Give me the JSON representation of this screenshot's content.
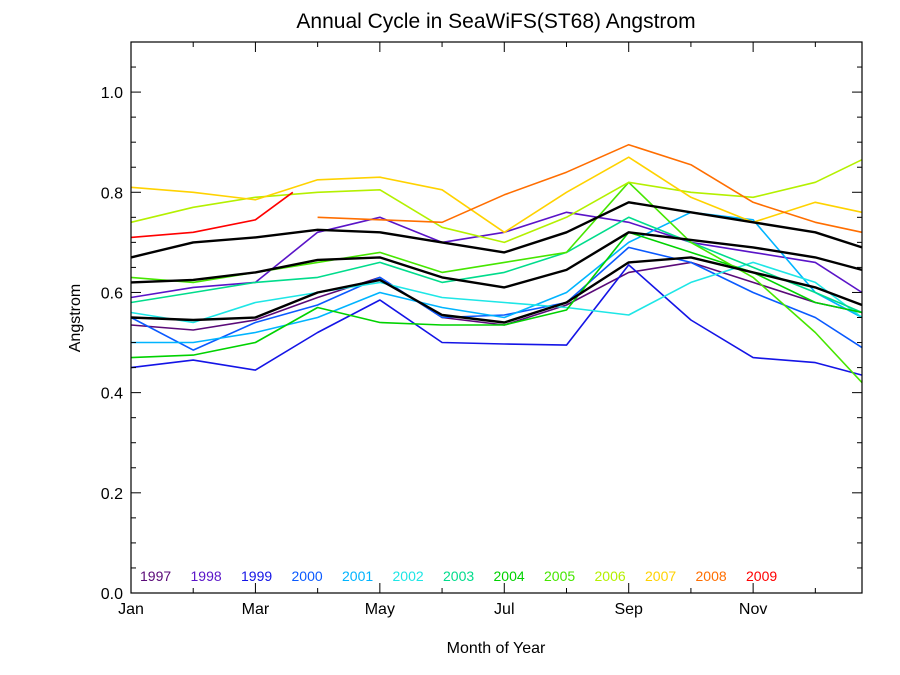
{
  "chart_data": {
    "type": "line",
    "title": "Annual Cycle in SeaWiFS(ST68) Angstrom",
    "xlabel": "Month of Year",
    "ylabel": "Angstrom",
    "xlim": [
      1,
      12.75
    ],
    "ylim": [
      0.0,
      1.1
    ],
    "x_ticks": [
      {
        "value": 1,
        "label": "Jan"
      },
      {
        "value": 3,
        "label": "Mar"
      },
      {
        "value": 5,
        "label": "May"
      },
      {
        "value": 7,
        "label": "Jul"
      },
      {
        "value": 9,
        "label": "Sep"
      },
      {
        "value": 11,
        "label": "Nov"
      }
    ],
    "y_ticks": [
      {
        "value": 0.0,
        "label": "0.0"
      },
      {
        "value": 0.2,
        "label": "0.2"
      },
      {
        "value": 0.4,
        "label": "0.4"
      },
      {
        "value": 0.6,
        "label": "0.6"
      },
      {
        "value": 0.8,
        "label": "0.8"
      },
      {
        "value": 1.0,
        "label": "1.0"
      }
    ],
    "grid": false,
    "legend_position": "bottom, inside plot",
    "legend": [
      {
        "label": "1997",
        "color": "#5a0a78"
      },
      {
        "label": "1998",
        "color": "#5a14c8"
      },
      {
        "label": "1999",
        "color": "#1414e6"
      },
      {
        "label": "2000",
        "color": "#0a5aff"
      },
      {
        "label": "2001",
        "color": "#00b4ff"
      },
      {
        "label": "2002",
        "color": "#1ee6e6"
      },
      {
        "label": "2003",
        "color": "#00dc8c"
      },
      {
        "label": "2004",
        "color": "#00d200"
      },
      {
        "label": "2005",
        "color": "#46e600"
      },
      {
        "label": "2006",
        "color": "#b4f000"
      },
      {
        "label": "2007",
        "color": "#ffd200"
      },
      {
        "label": "2008",
        "color": "#ff6e00"
      },
      {
        "label": "2009",
        "color": "#ff0000"
      }
    ],
    "series": [
      {
        "color": "#5a0a78",
        "x": [
          1,
          2,
          3,
          4,
          5,
          6,
          7,
          8,
          9,
          10,
          11,
          12,
          12.75
        ],
        "y": [
          0.535,
          0.525,
          0.545,
          0.59,
          0.63,
          0.55,
          0.535,
          0.575,
          0.64,
          0.66,
          0.62,
          0.58,
          0.56
        ]
      },
      {
        "color": "#5a14c8",
        "x": [
          1,
          2,
          3,
          4,
          5,
          6,
          7,
          8,
          9,
          10,
          11,
          12,
          12.75
        ],
        "y": [
          0.59,
          0.61,
          0.62,
          0.72,
          0.75,
          0.7,
          0.72,
          0.76,
          0.74,
          0.7,
          0.68,
          0.66,
          0.6
        ]
      },
      {
        "color": "#1414e6",
        "x": [
          1,
          2,
          3,
          4,
          5,
          6,
          7,
          8,
          9,
          10,
          11,
          12,
          12.75
        ],
        "y": [
          0.45,
          0.465,
          0.445,
          0.52,
          0.585,
          0.5,
          0.497,
          0.495,
          0.655,
          0.545,
          0.47,
          0.46,
          0.435
        ]
      },
      {
        "color": "#0a5aff",
        "x": [
          1,
          2,
          3,
          4,
          5,
          6,
          7,
          8,
          9,
          10,
          11,
          12,
          12.75
        ],
        "y": [
          0.55,
          0.485,
          0.54,
          0.575,
          0.63,
          0.55,
          0.555,
          0.58,
          0.69,
          0.66,
          0.6,
          0.55,
          0.49
        ]
      },
      {
        "color": "#00b4ff",
        "x": [
          1,
          2,
          3,
          4,
          5,
          6,
          7,
          8,
          9,
          10,
          11,
          12,
          12.75
        ],
        "y": [
          0.5,
          0.5,
          0.52,
          0.55,
          0.6,
          0.57,
          0.55,
          0.6,
          0.7,
          0.76,
          0.745,
          0.6,
          0.55
        ]
      },
      {
        "color": "#1ee6e6",
        "x": [
          1,
          2,
          3,
          4,
          5,
          6,
          7,
          8,
          9,
          10,
          11,
          12,
          12.75
        ],
        "y": [
          0.56,
          0.54,
          0.58,
          0.6,
          0.62,
          0.59,
          0.58,
          0.57,
          0.555,
          0.62,
          0.66,
          0.62,
          0.55
        ]
      },
      {
        "color": "#00dc8c",
        "x": [
          1,
          2,
          3,
          4,
          5,
          6,
          7,
          8,
          9,
          10,
          11,
          12,
          12.75
        ],
        "y": [
          0.58,
          0.6,
          0.62,
          0.63,
          0.66,
          0.62,
          0.64,
          0.68,
          0.75,
          0.7,
          0.65,
          0.6,
          0.56
        ]
      },
      {
        "color": "#00d200",
        "x": [
          1,
          2,
          3,
          4,
          5,
          6,
          7,
          8,
          9,
          10,
          11,
          12,
          12.75
        ],
        "y": [
          0.47,
          0.475,
          0.5,
          0.57,
          0.54,
          0.535,
          0.535,
          0.565,
          0.72,
          0.68,
          0.64,
          0.58,
          0.56
        ]
      },
      {
        "color": "#46e600",
        "x": [
          1,
          2,
          3,
          4,
          5,
          6,
          7,
          8,
          9,
          10,
          11,
          12,
          12.75
        ],
        "y": [
          0.63,
          0.62,
          0.64,
          0.66,
          0.68,
          0.64,
          0.66,
          0.68,
          0.82,
          0.7,
          0.63,
          0.52,
          0.42
        ]
      },
      {
        "color": "#b4f000",
        "x": [
          1,
          2,
          3,
          4,
          5,
          6,
          7,
          8,
          9,
          10,
          11,
          12,
          12.75
        ],
        "y": [
          0.74,
          0.77,
          0.79,
          0.8,
          0.805,
          0.73,
          0.7,
          0.75,
          0.82,
          0.8,
          0.79,
          0.82,
          0.865
        ]
      },
      {
        "color": "#ffd200",
        "x": [
          1,
          2,
          3,
          4,
          5,
          6,
          7,
          8,
          9,
          10,
          11,
          12,
          12.75
        ],
        "y": [
          0.81,
          0.8,
          0.785,
          0.825,
          0.83,
          0.805,
          0.72,
          0.8,
          0.87,
          0.79,
          0.74,
          0.78,
          0.76
        ]
      },
      {
        "color": "#ff6e00",
        "x": [
          4,
          5,
          6,
          7,
          8,
          9,
          10,
          11,
          12,
          12.75
        ],
        "y": [
          0.75,
          0.745,
          0.74,
          0.795,
          0.84,
          0.895,
          0.855,
          0.78,
          0.74,
          0.72
        ]
      },
      {
        "color": "#ff0000",
        "x": [
          1,
          2,
          3,
          3.6
        ],
        "y": [
          0.71,
          0.72,
          0.745,
          0.8
        ]
      },
      {
        "color": "#000000",
        "width": 2.4,
        "x": [
          1,
          2,
          3,
          4,
          5,
          6,
          7,
          8,
          9,
          10,
          11,
          12,
          12.75
        ],
        "y": [
          0.67,
          0.7,
          0.71,
          0.725,
          0.72,
          0.7,
          0.68,
          0.72,
          0.78,
          0.76,
          0.74,
          0.72,
          0.69
        ]
      },
      {
        "color": "#000000",
        "width": 2.4,
        "x": [
          1,
          2,
          3,
          4,
          5,
          6,
          7,
          8,
          9,
          10,
          11,
          12,
          12.75
        ],
        "y": [
          0.62,
          0.625,
          0.64,
          0.665,
          0.67,
          0.63,
          0.61,
          0.645,
          0.72,
          0.705,
          0.69,
          0.67,
          0.645
        ]
      },
      {
        "color": "#000000",
        "width": 2.4,
        "x": [
          1,
          2,
          3,
          4,
          5,
          6,
          7,
          8,
          9,
          10,
          11,
          12,
          12.75
        ],
        "y": [
          0.55,
          0.545,
          0.55,
          0.6,
          0.625,
          0.555,
          0.54,
          0.58,
          0.66,
          0.67,
          0.64,
          0.61,
          0.575
        ]
      }
    ]
  }
}
